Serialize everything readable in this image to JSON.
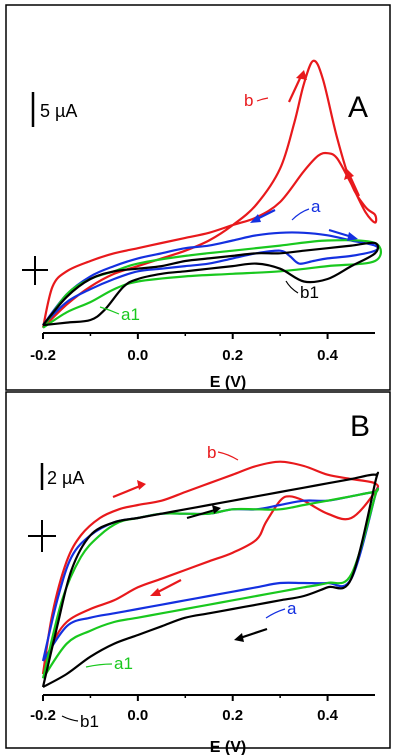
{
  "chart_data": [
    {
      "type": "line",
      "panel_label": "A",
      "xlabel": "E (V)",
      "ylabel": "",
      "xlim": [
        -0.2,
        0.5
      ],
      "ylim": [
        -3.6,
        8.4
      ],
      "x_ticks": [
        "-0.2",
        "0.0",
        "0.2",
        "0.4"
      ],
      "y_unit": "µA",
      "scale_bar": {
        "label": "5 µA",
        "value": 5
      },
      "grid": false,
      "colors": {
        "b": "#e8191c",
        "a": "#1430e0",
        "a1": "#19c81e",
        "b1": "#000000"
      },
      "series": [
        {
          "name": "b",
          "color": "#e8191c",
          "x": [
            -0.2,
            -0.15,
            -0.1,
            -0.05,
            0.0,
            0.05,
            0.1,
            0.15,
            0.2,
            0.25,
            0.3,
            0.33,
            0.35,
            0.37,
            0.39,
            0.42,
            0.45,
            0.48,
            0.5,
            0.5,
            0.48,
            0.45,
            0.42,
            0.4,
            0.38,
            0.35,
            0.3,
            0.25,
            0.2,
            0.15,
            0.1,
            0.05,
            0.0,
            -0.05,
            -0.1,
            -0.15,
            -0.18,
            -0.2
          ],
          "y": [
            -3.2,
            -2.3,
            -1.6,
            -1.1,
            -0.8,
            -0.5,
            -0.2,
            0.2,
            0.8,
            1.6,
            3.0,
            4.8,
            6.3,
            7.2,
            6.5,
            4.2,
            2.4,
            1.5,
            1.2,
            0.9,
            1.3,
            2.4,
            3.4,
            3.6,
            3.5,
            2.9,
            1.7,
            1.1,
            0.8,
            0.5,
            0.3,
            0.1,
            -0.1,
            -0.3,
            -0.6,
            -1.0,
            -1.6,
            -3.2
          ]
        },
        {
          "name": "a",
          "color": "#1430e0",
          "x": [
            -0.2,
            -0.15,
            -0.1,
            -0.05,
            0.0,
            0.05,
            0.1,
            0.15,
            0.2,
            0.25,
            0.3,
            0.32,
            0.34,
            0.37,
            0.4,
            0.45,
            0.5,
            0.5,
            0.45,
            0.4,
            0.35,
            0.3,
            0.25,
            0.2,
            0.15,
            0.1,
            0.05,
            0.0,
            -0.05,
            -0.1,
            -0.15,
            -0.2
          ],
          "y": [
            -3.1,
            -2.2,
            -1.7,
            -1.3,
            -1.0,
            -0.9,
            -0.8,
            -0.7,
            -0.5,
            -0.3,
            -0.2,
            -0.4,
            -0.7,
            -0.6,
            -0.5,
            -0.4,
            -0.2,
            0.0,
            0.2,
            0.4,
            0.5,
            0.5,
            0.4,
            0.2,
            0.0,
            -0.1,
            -0.3,
            -0.5,
            -0.8,
            -1.2,
            -1.9,
            -3.1
          ]
        },
        {
          "name": "a1",
          "color": "#19c81e",
          "x": [
            -0.2,
            -0.15,
            -0.1,
            -0.05,
            0.0,
            0.1,
            0.2,
            0.3,
            0.4,
            0.5,
            0.5,
            0.4,
            0.3,
            0.2,
            0.1,
            0.0,
            -0.05,
            -0.1,
            -0.15,
            -0.2
          ],
          "y": [
            -3.2,
            -2.6,
            -2.2,
            -1.7,
            -1.4,
            -1.2,
            -1.1,
            -1.0,
            -0.8,
            -0.6,
            0.1,
            0.2,
            0.0,
            -0.2,
            -0.4,
            -0.7,
            -1.0,
            -1.3,
            -1.9,
            -3.2
          ]
        },
        {
          "name": "b1",
          "color": "#000000",
          "x": [
            -0.2,
            -0.15,
            -0.1,
            -0.07,
            -0.03,
            0.0,
            0.05,
            0.1,
            0.15,
            0.2,
            0.25,
            0.3,
            0.35,
            0.4,
            0.45,
            0.5,
            0.5,
            0.45,
            0.4,
            0.35,
            0.3,
            0.25,
            0.2,
            0.15,
            0.1,
            0.05,
            0.0,
            -0.05,
            -0.1,
            -0.15,
            -0.2
          ],
          "y": [
            -3.1,
            -3.0,
            -2.9,
            -2.5,
            -1.6,
            -1.3,
            -1.1,
            -1.0,
            -0.9,
            -0.8,
            -0.7,
            -0.9,
            -1.4,
            -1.3,
            -0.8,
            -0.3,
            0.1,
            0.0,
            -0.1,
            -0.2,
            -0.3,
            -0.3,
            -0.4,
            -0.5,
            -0.6,
            -0.8,
            -0.9,
            -1.0,
            -1.3,
            -2.0,
            -3.1
          ]
        }
      ],
      "annotations": [
        {
          "text": "b",
          "color": "#e8191c"
        },
        {
          "text": "a",
          "color": "#1430e0"
        },
        {
          "text": "a1",
          "color": "#19c81e"
        },
        {
          "text": "b1",
          "color": "#000000"
        }
      ]
    },
    {
      "type": "line",
      "panel_label": "B",
      "xlabel": "E (V)",
      "ylabel": "",
      "xlim": [
        -0.2,
        0.5
      ],
      "ylim": [
        -3.5,
        2.5
      ],
      "x_ticks": [
        "-0.2",
        "0.0",
        "0.2",
        "0.4"
      ],
      "y_unit": "µA",
      "scale_bar": {
        "label": "2 µA",
        "value": 2
      },
      "grid": false,
      "colors": {
        "b": "#e8191c",
        "a": "#1430e0",
        "a1": "#19c81e",
        "b1": "#000000"
      },
      "series": [
        {
          "name": "b",
          "color": "#e8191c",
          "x": [
            -0.2,
            -0.18,
            -0.15,
            -0.12,
            -0.08,
            -0.04,
            0.0,
            0.05,
            0.1,
            0.15,
            0.2,
            0.25,
            0.3,
            0.35,
            0.4,
            0.45,
            0.5,
            0.5,
            0.45,
            0.4,
            0.35,
            0.32,
            0.3,
            0.27,
            0.25,
            0.2,
            0.15,
            0.1,
            0.05,
            0.0,
            -0.05,
            -0.1,
            -0.15,
            -0.18,
            -0.2
          ],
          "y": [
            -2.9,
            -1.5,
            -0.3,
            0.3,
            0.7,
            0.9,
            1.0,
            1.1,
            1.3,
            1.5,
            1.7,
            1.9,
            2.0,
            1.9,
            1.7,
            1.6,
            1.5,
            1.3,
            0.7,
            0.8,
            1.1,
            1.2,
            1.1,
            0.6,
            0.2,
            -0.1,
            -0.3,
            -0.5,
            -0.7,
            -0.9,
            -1.2,
            -1.4,
            -1.7,
            -2.2,
            -2.9
          ]
        },
        {
          "name": "a",
          "color": "#1430e0",
          "x": [
            -0.2,
            -0.17,
            -0.14,
            -0.1,
            -0.05,
            0.0,
            0.05,
            0.1,
            0.15,
            0.2,
            0.25,
            0.3,
            0.35,
            0.4,
            0.45,
            0.5,
            0.5,
            0.45,
            0.4,
            0.35,
            0.3,
            0.25,
            0.2,
            0.15,
            0.1,
            0.05,
            0.0,
            -0.05,
            -0.1,
            -0.15,
            -0.2
          ],
          "y": [
            -2.6,
            -1.2,
            -0.2,
            0.3,
            0.6,
            0.7,
            0.8,
            0.8,
            0.8,
            0.9,
            0.9,
            1.0,
            1.1,
            1.1,
            1.2,
            1.3,
            1.2,
            -0.7,
            -0.8,
            -0.8,
            -0.8,
            -0.9,
            -1.0,
            -1.1,
            -1.2,
            -1.3,
            -1.4,
            -1.5,
            -1.6,
            -1.8,
            -2.6
          ]
        },
        {
          "name": "a1",
          "color": "#19c81e",
          "x": [
            -0.2,
            -0.16,
            -0.12,
            -0.08,
            -0.04,
            0.0,
            0.05,
            0.1,
            0.15,
            0.2,
            0.25,
            0.3,
            0.35,
            0.4,
            0.45,
            0.5,
            0.5,
            0.45,
            0.4,
            0.35,
            0.3,
            0.25,
            0.2,
            0.15,
            0.1,
            0.05,
            0.0,
            -0.05,
            -0.1,
            -0.15,
            -0.2
          ],
          "y": [
            -3.0,
            -1.2,
            -0.2,
            0.3,
            0.6,
            0.7,
            0.8,
            0.8,
            0.8,
            0.9,
            0.9,
            0.9,
            1.0,
            1.1,
            1.2,
            1.3,
            1.2,
            -0.6,
            -0.8,
            -0.9,
            -1.0,
            -1.1,
            -1.2,
            -1.3,
            -1.4,
            -1.5,
            -1.6,
            -1.7,
            -1.9,
            -2.2,
            -3.0
          ]
        },
        {
          "name": "b1",
          "color": "#000000",
          "x": [
            -0.2,
            -0.17,
            -0.14,
            -0.1,
            -0.05,
            0.0,
            0.05,
            0.1,
            0.15,
            0.2,
            0.25,
            0.3,
            0.35,
            0.4,
            0.45,
            0.5,
            0.5,
            0.45,
            0.4,
            0.35,
            0.3,
            0.25,
            0.2,
            0.15,
            0.1,
            0.05,
            0.0,
            -0.05,
            -0.1,
            -0.15,
            -0.2
          ],
          "y": [
            -3.2,
            -1.8,
            -0.5,
            0.3,
            0.6,
            0.7,
            0.8,
            0.9,
            1.0,
            1.1,
            1.2,
            1.3,
            1.4,
            1.5,
            1.6,
            1.7,
            1.5,
            -0.7,
            -0.9,
            -1.1,
            -1.2,
            -1.3,
            -1.4,
            -1.5,
            -1.6,
            -1.8,
            -2.0,
            -2.2,
            -2.5,
            -2.9,
            -3.2
          ]
        }
      ],
      "annotations": [
        {
          "text": "b",
          "color": "#e8191c"
        },
        {
          "text": "a",
          "color": "#1430e0"
        },
        {
          "text": "a1",
          "color": "#19c81e"
        },
        {
          "text": "b1",
          "color": "#000000"
        }
      ]
    }
  ]
}
